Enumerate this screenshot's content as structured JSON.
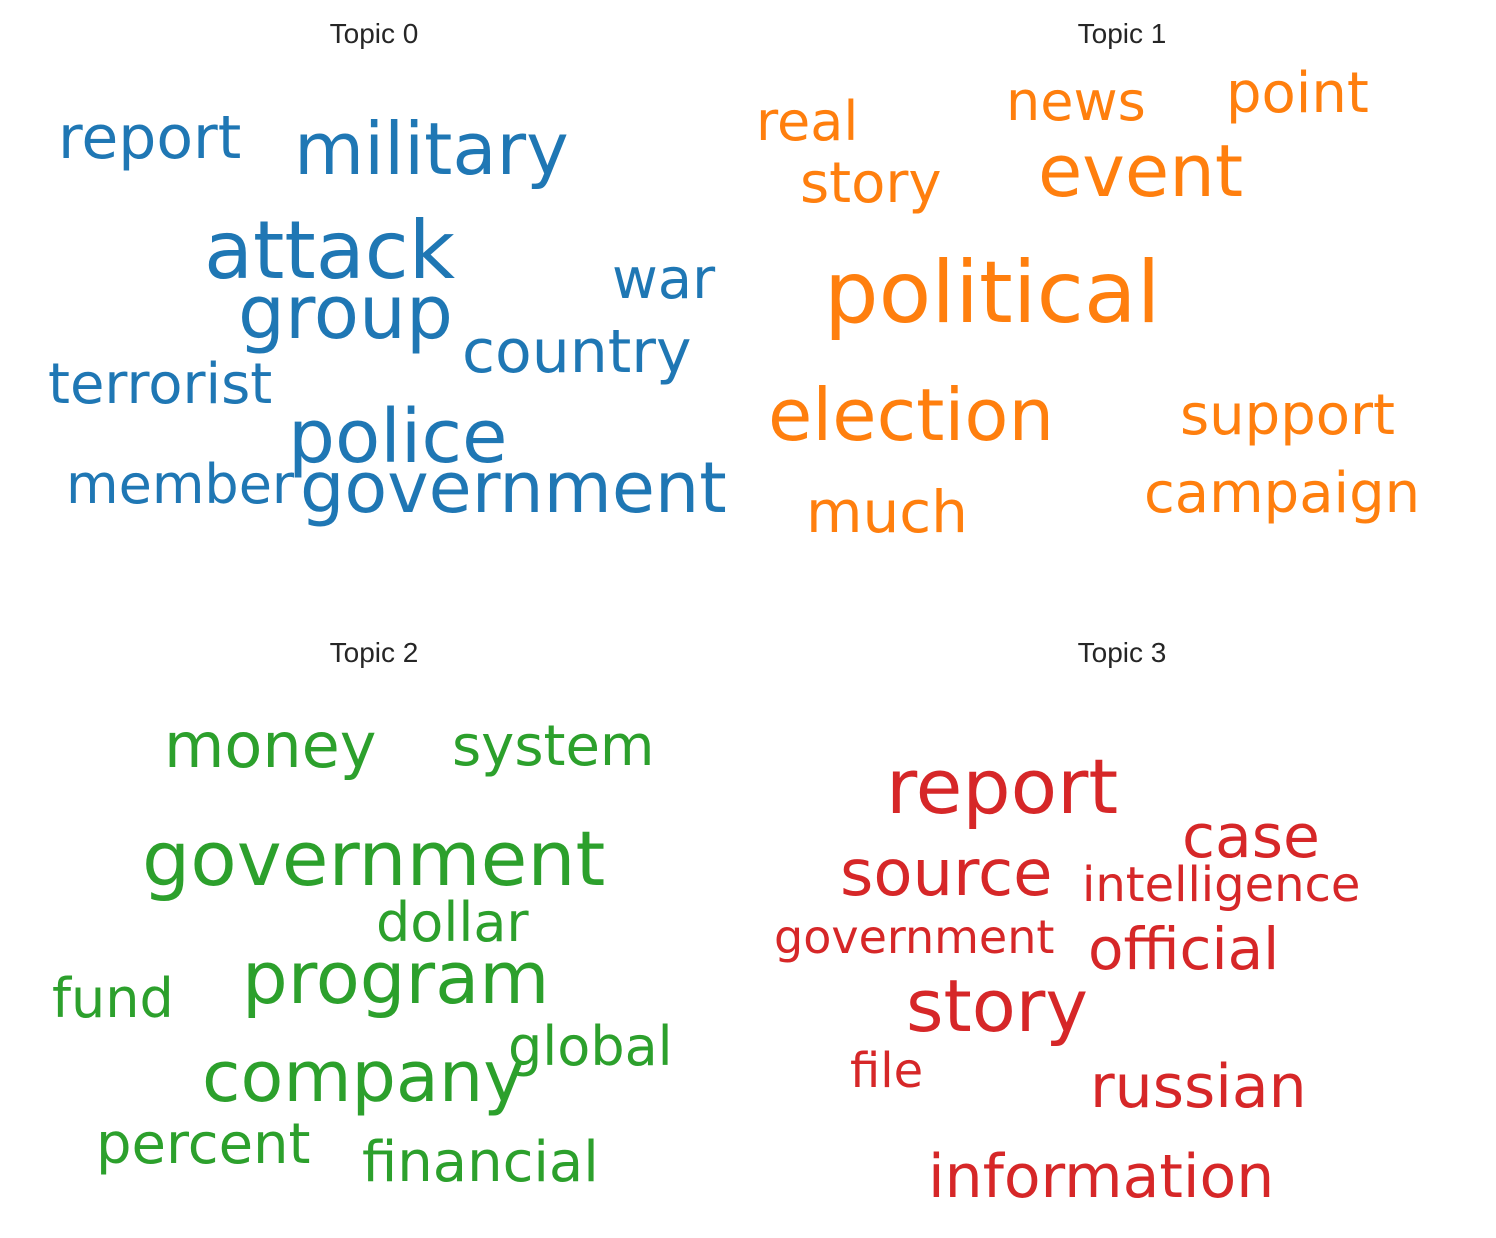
{
  "topics": [
    {
      "title": "Topic 0",
      "color": "#1f77b4",
      "words": [
        "report",
        "military",
        "attack",
        "war",
        "group",
        "country",
        "terrorist",
        "police",
        "member",
        "government"
      ]
    },
    {
      "title": "Topic 1",
      "color": "#ff7f0e",
      "words": [
        "real",
        "news",
        "point",
        "story",
        "event",
        "political",
        "election",
        "support",
        "campaign",
        "much"
      ]
    },
    {
      "title": "Topic 2",
      "color": "#2ca02c",
      "words": [
        "money",
        "system",
        "government",
        "dollar",
        "program",
        "fund",
        "global",
        "company",
        "percent",
        "financial"
      ]
    },
    {
      "title": "Topic 3",
      "color": "#d62728",
      "words": [
        "report",
        "case",
        "source",
        "intelligence",
        "government",
        "official",
        "story",
        "file",
        "russian",
        "information"
      ]
    }
  ]
}
